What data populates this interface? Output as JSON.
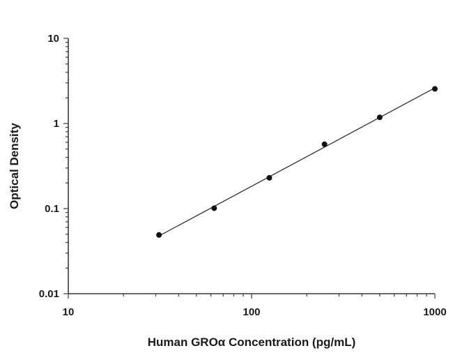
{
  "chart_data": {
    "type": "scatter",
    "title": "",
    "xlabel": "Human GROα Concentration (pg/mL)",
    "ylabel": "Optical Density",
    "xscale": "log",
    "yscale": "log",
    "xlim": [
      10,
      1000
    ],
    "ylim": [
      0.01,
      10
    ],
    "x_ticks": [
      "10",
      "100",
      "1000"
    ],
    "y_ticks": [
      "0.01",
      "0.1",
      "1",
      "10"
    ],
    "grid": false,
    "legend": "none",
    "fit_line": true,
    "point_color": "#111111",
    "series": [
      {
        "x": [
          31.25,
          62.5,
          125,
          250,
          500,
          1000
        ],
        "y": [
          0.049,
          0.101,
          0.23,
          0.57,
          1.18,
          2.55
        ]
      }
    ]
  }
}
